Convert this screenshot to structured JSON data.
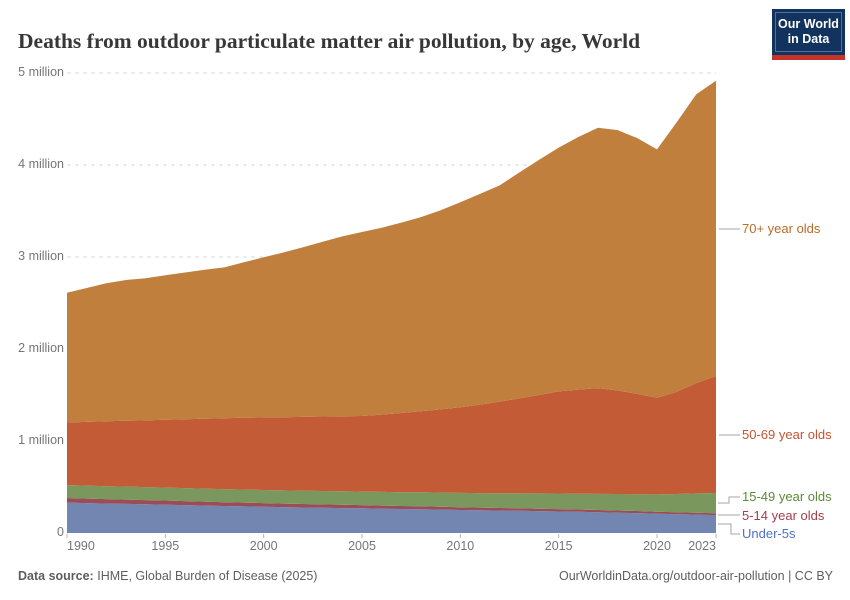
{
  "header": {
    "title": "Deaths from outdoor particulate matter air pollution, by age, World"
  },
  "logo": {
    "line1": "Our World",
    "line2": "in Data"
  },
  "chart_data": {
    "type": "area",
    "stacked": true,
    "title": "Deaths from outdoor particulate matter air pollution, by age, World",
    "unit": "deaths (millions)",
    "grid": true,
    "legend_position": "right",
    "ylim": [
      0,
      5
    ],
    "x": [
      1990,
      1991,
      1992,
      1993,
      1994,
      1995,
      1996,
      1997,
      1998,
      1999,
      2000,
      2001,
      2002,
      2003,
      2004,
      2005,
      2006,
      2007,
      2008,
      2009,
      2010,
      2011,
      2012,
      2013,
      2014,
      2015,
      2016,
      2017,
      2018,
      2019,
      2020,
      2021,
      2022,
      2023
    ],
    "x_ticks": [
      1990,
      1995,
      2000,
      2005,
      2010,
      2015,
      2020,
      2023
    ],
    "y_ticks": [
      {
        "value": 0,
        "label": "0"
      },
      {
        "value": 1,
        "label": "1 million"
      },
      {
        "value": 2,
        "label": "2 million"
      },
      {
        "value": 3,
        "label": "3 million"
      },
      {
        "value": 4,
        "label": "4 million"
      },
      {
        "value": 5,
        "label": "5 million"
      }
    ],
    "series": [
      {
        "name": "Under-5s",
        "color": "#7286B1",
        "label_color": "#4D72C8",
        "values": [
          0.33,
          0.325,
          0.32,
          0.316,
          0.312,
          0.308,
          0.303,
          0.298,
          0.293,
          0.289,
          0.285,
          0.281,
          0.277,
          0.274,
          0.271,
          0.268,
          0.264,
          0.261,
          0.258,
          0.254,
          0.25,
          0.247,
          0.244,
          0.241,
          0.238,
          0.234,
          0.23,
          0.226,
          0.221,
          0.216,
          0.21,
          0.205,
          0.2,
          0.195
        ]
      },
      {
        "name": "5-14 year olds",
        "color": "#9A4D57",
        "label_color": "#A33E4E",
        "values": [
          0.05,
          0.049,
          0.048,
          0.047,
          0.046,
          0.045,
          0.044,
          0.043,
          0.042,
          0.041,
          0.04,
          0.039,
          0.038,
          0.037,
          0.036,
          0.035,
          0.034,
          0.033,
          0.032,
          0.031,
          0.03,
          0.029,
          0.028,
          0.027,
          0.026,
          0.026,
          0.025,
          0.024,
          0.024,
          0.023,
          0.022,
          0.021,
          0.021,
          0.02
        ]
      },
      {
        "name": "15-49 year olds",
        "color": "#7A975D",
        "label_color": "#5C8A39",
        "values": [
          0.141,
          0.141,
          0.141,
          0.141,
          0.141,
          0.141,
          0.141,
          0.141,
          0.142,
          0.142,
          0.142,
          0.143,
          0.144,
          0.145,
          0.146,
          0.147,
          0.149,
          0.15,
          0.152,
          0.154,
          0.156,
          0.158,
          0.161,
          0.163,
          0.166,
          0.169,
          0.172,
          0.175,
          0.179,
          0.183,
          0.188,
          0.198,
          0.209,
          0.22
        ]
      },
      {
        "name": "50-69 year olds",
        "color": "#C35C36",
        "label_color": "#C65432",
        "values": [
          0.68,
          0.693,
          0.706,
          0.716,
          0.725,
          0.737,
          0.748,
          0.76,
          0.77,
          0.78,
          0.79,
          0.796,
          0.803,
          0.81,
          0.816,
          0.822,
          0.84,
          0.86,
          0.882,
          0.905,
          0.93,
          0.962,
          0.995,
          1.032,
          1.07,
          1.11,
          1.132,
          1.15,
          1.125,
          1.09,
          1.05,
          1.11,
          1.2,
          1.27
        ]
      },
      {
        "name": "70+ year olds",
        "color": "#C17F3E",
        "label_color": "#BC6A24",
        "values": [
          1.41,
          1.455,
          1.5,
          1.53,
          1.545,
          1.57,
          1.595,
          1.62,
          1.64,
          1.69,
          1.74,
          1.79,
          1.845,
          1.9,
          1.955,
          2.0,
          2.03,
          2.07,
          2.11,
          2.165,
          2.23,
          2.29,
          2.35,
          2.455,
          2.555,
          2.65,
          2.745,
          2.83,
          2.83,
          2.78,
          2.7,
          2.93,
          3.14,
          3.21
        ]
      }
    ]
  },
  "footer": {
    "source_label": "Data source:",
    "source_value": "IHME, Global Burden of Disease (2025)",
    "link": "OurWorldinData.org/outdoor-air-pollution",
    "separator": "|",
    "license": "CC BY"
  }
}
